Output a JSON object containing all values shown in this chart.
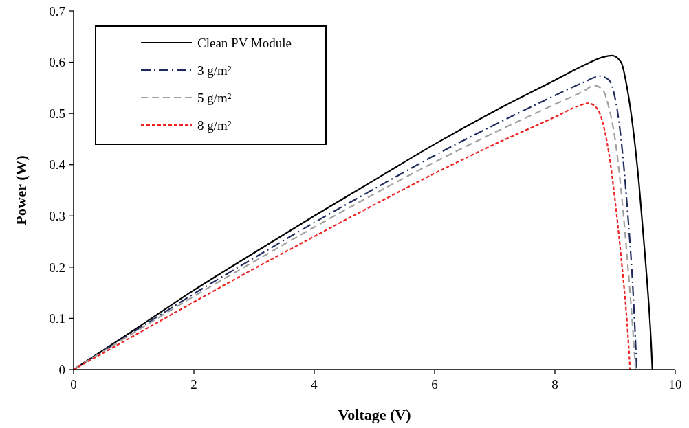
{
  "chart_data": {
    "type": "line",
    "xlabel": "Voltage (V)",
    "ylabel": "Power (W)",
    "xlim": [
      0,
      10
    ],
    "xticks": [
      0,
      2,
      4,
      6,
      8,
      10
    ],
    "ylim": [
      0,
      0.7
    ],
    "yticks": [
      0,
      0.1,
      0.2,
      0.3,
      0.4,
      0.5,
      0.6,
      0.7
    ],
    "grid": false,
    "legend": "top left",
    "marker": "none",
    "series": [
      {
        "name": "Clean PV Module",
        "color": "#000000",
        "line_style": "solid",
        "x": [
          0,
          1,
          2,
          3,
          4,
          5,
          6,
          7,
          8,
          8.5,
          8.8,
          8.95,
          9.1,
          9.2,
          9.3,
          9.4,
          9.5,
          9.6,
          9.62
        ],
        "values": [
          0,
          0.077,
          0.155,
          0.228,
          0.3,
          0.37,
          0.44,
          0.505,
          0.565,
          0.595,
          0.61,
          0.613,
          0.6,
          0.55,
          0.47,
          0.36,
          0.22,
          0.05,
          0
        ]
      },
      {
        "name": "3 g/m²",
        "color": "#1f2a5c",
        "line_style": "dashdot",
        "x": [
          0,
          1,
          2,
          3,
          4,
          5,
          6,
          7,
          8,
          8.5,
          8.75,
          8.9,
          9,
          9.1,
          9.2,
          9.3,
          9.36
        ],
        "values": [
          0,
          0.074,
          0.148,
          0.218,
          0.287,
          0.353,
          0.418,
          0.478,
          0.535,
          0.562,
          0.573,
          0.565,
          0.53,
          0.45,
          0.32,
          0.15,
          0
        ]
      },
      {
        "name": "5 g/m²",
        "color": "#a0a0a0",
        "line_style": "dashed",
        "x": [
          0,
          1,
          2,
          3,
          4,
          5,
          6,
          7,
          8,
          8.5,
          8.65,
          8.8,
          8.9,
          9,
          9.1,
          9.2,
          9.3,
          9.34
        ],
        "values": [
          0,
          0.072,
          0.143,
          0.211,
          0.278,
          0.343,
          0.405,
          0.463,
          0.518,
          0.545,
          0.555,
          0.545,
          0.51,
          0.45,
          0.35,
          0.22,
          0.07,
          0
        ]
      },
      {
        "name": "8 g/m²",
        "color": "#ee2222",
        "line_style": "dotted",
        "x": [
          0,
          1,
          2,
          3,
          4,
          5,
          6,
          7,
          8,
          8.4,
          8.55,
          8.7,
          8.8,
          8.9,
          9,
          9.1,
          9.2,
          9.25
        ],
        "values": [
          0,
          0.066,
          0.132,
          0.197,
          0.26,
          0.322,
          0.383,
          0.44,
          0.493,
          0.515,
          0.52,
          0.51,
          0.48,
          0.42,
          0.33,
          0.22,
          0.09,
          0
        ]
      }
    ]
  }
}
